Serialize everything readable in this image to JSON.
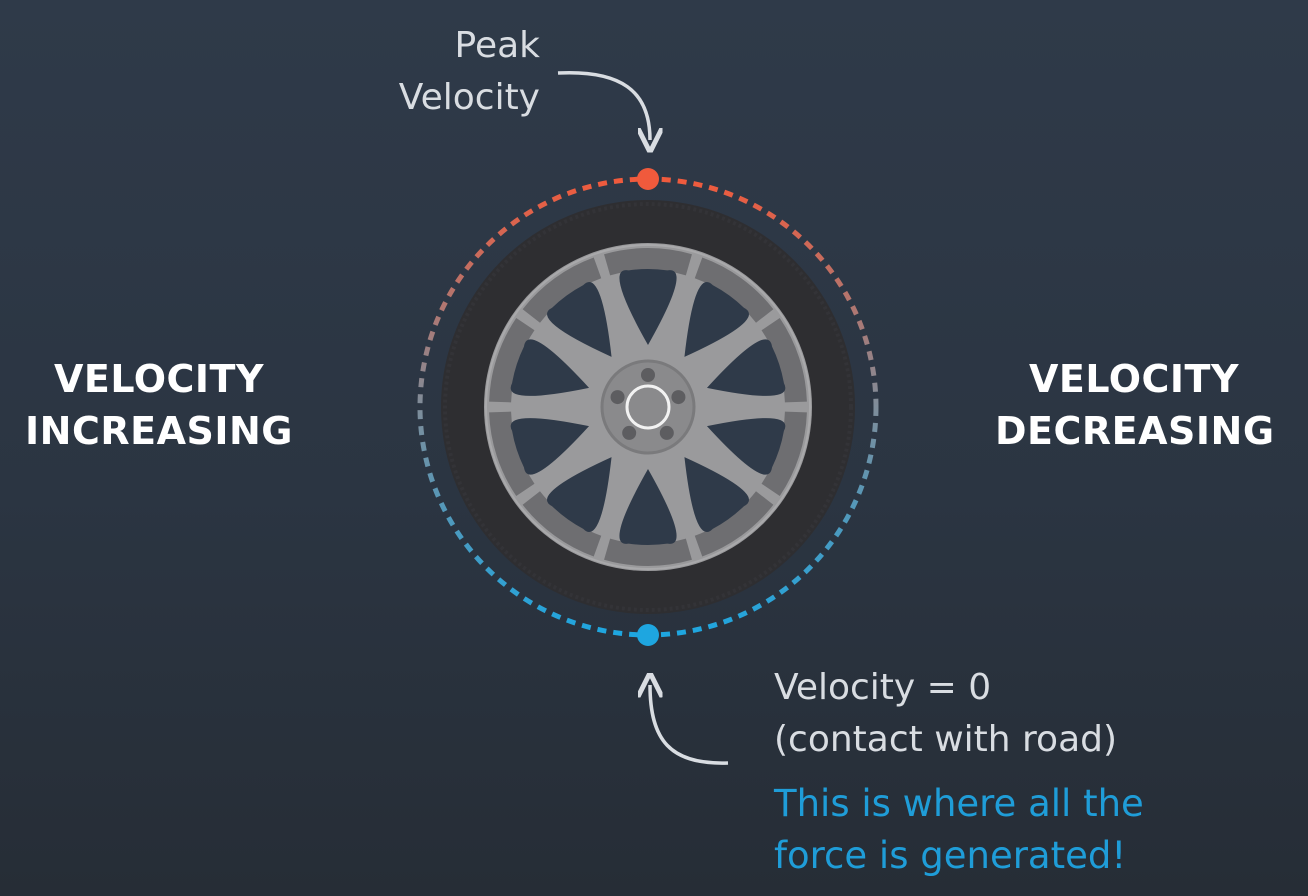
{
  "labels": {
    "left": [
      "VELOCITY",
      "INCREASING"
    ],
    "right": [
      "VELOCITY",
      "DECREASING"
    ],
    "peak": [
      "Peak",
      "Velocity"
    ],
    "zero": [
      "Velocity = 0",
      "(contact with road)"
    ],
    "force": [
      "This is where all the",
      "force is generated!"
    ]
  },
  "colors": {
    "peak_point": "#f05a3c",
    "contact_point": "#1ea6e0",
    "tire": "#2e2e31",
    "rim": "#9a9a9c",
    "force_text": "#1f9dd8"
  },
  "icons": {
    "wheel": "wheel-icon",
    "arrow_peak": "curved-arrow-down-icon",
    "arrow_contact": "curved-arrow-up-icon"
  }
}
